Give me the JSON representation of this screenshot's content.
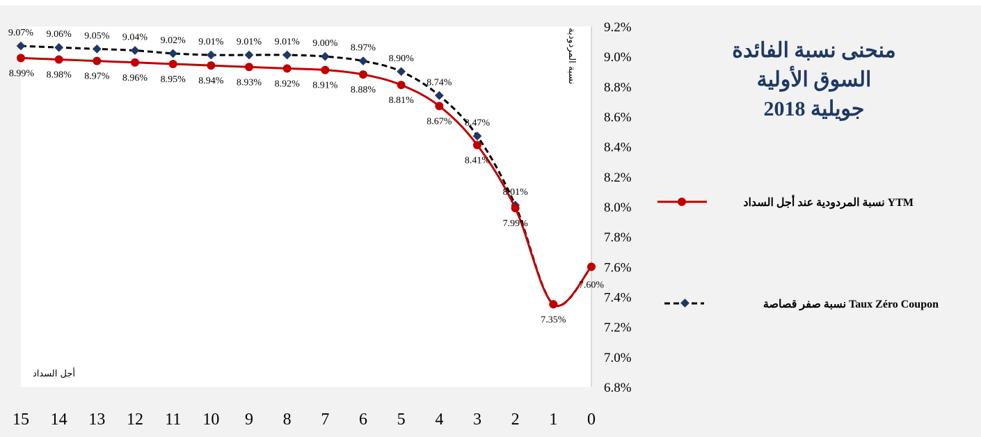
{
  "chart_data": {
    "type": "line",
    "title": [
      "منحنى نسبة الفائدة",
      "السوق الأولية",
      "جويلية 2018"
    ],
    "xlabel": "أجل السداد",
    "ylabel": "نسبة المردودية",
    "x": [
      15,
      14,
      13,
      12,
      11,
      10,
      9,
      8,
      7,
      6,
      5,
      4,
      3,
      2,
      1,
      0
    ],
    "x_reversed": true,
    "ylim": [
      6.8,
      9.2
    ],
    "y_ticks": [
      "9.2%",
      "9.0%",
      "8.8%",
      "8.6%",
      "8.4%",
      "8.2%",
      "8.0%",
      "7.8%",
      "7.6%",
      "7.4%",
      "7.2%",
      "7.0%",
      "6.8%"
    ],
    "y_axis_side": "right",
    "grid": false,
    "legend_position": "right",
    "series": [
      {
        "name": "نسبة المردودية عند أجل السداد  YTM",
        "color": "#c00000",
        "line_style": "solid",
        "marker": "circle",
        "x": [
          15,
          14,
          13,
          12,
          11,
          10,
          9,
          8,
          7,
          6,
          5,
          4,
          3,
          2,
          1,
          0
        ],
        "values": [
          8.99,
          8.98,
          8.97,
          8.96,
          8.95,
          8.94,
          8.93,
          8.92,
          8.91,
          8.88,
          8.81,
          8.67,
          8.41,
          7.99,
          7.35,
          7.6
        ],
        "labels": [
          "8.99%",
          "8.98%",
          "8.97%",
          "8.96%",
          "8.95%",
          "8.94%",
          "8.93%",
          "8.92%",
          "8.91%",
          "8.88%",
          "8.81%",
          "8.67%",
          "8.41%",
          "7.99%",
          "7.35%",
          "7.60%"
        ]
      },
      {
        "name": "نسبة صفر قصاصة  Taux Zéro Coupon",
        "color": "#000000",
        "marker_color": "#1f3864",
        "line_style": "dashed",
        "marker": "diamond",
        "x": [
          15,
          14,
          13,
          12,
          11,
          10,
          9,
          8,
          7,
          6,
          5,
          4,
          3,
          2,
          1,
          0
        ],
        "values": [
          9.07,
          9.06,
          9.05,
          9.04,
          9.02,
          9.01,
          9.01,
          9.01,
          9.0,
          8.97,
          8.9,
          8.74,
          8.47,
          8.01,
          7.35,
          7.6
        ],
        "labels": [
          "9.07%",
          "9.06%",
          "9.05%",
          "9.04%",
          "9.02%",
          "9.01%",
          "9.01%",
          "9.01%",
          "9.00%",
          "8.97%",
          "8.90%",
          "8.74%",
          "8.47%",
          "8.01%",
          "",
          ""
        ]
      }
    ]
  }
}
